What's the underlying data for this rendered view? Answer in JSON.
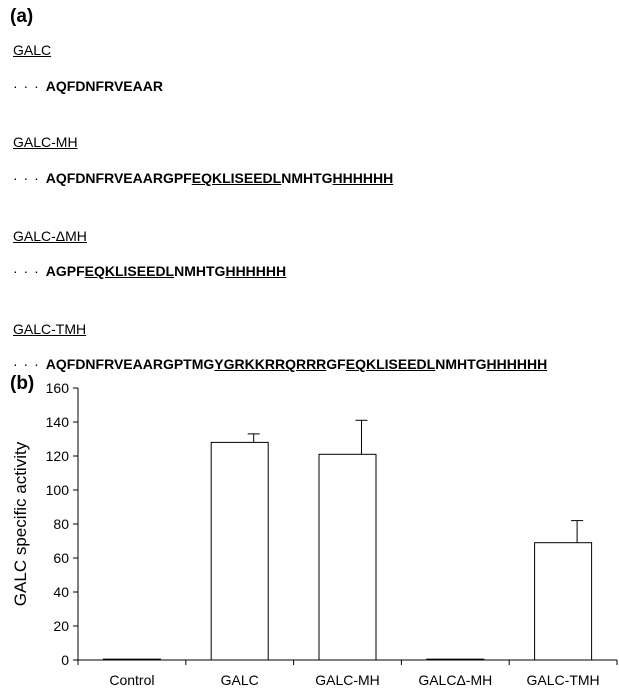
{
  "panel_a": {
    "label": "(a)",
    "constructs": [
      {
        "name": "GALC",
        "prefix": "· · ·",
        "segments": [
          {
            "text": "AQFDNFRVEAAR",
            "u": false
          }
        ]
      },
      {
        "name": "GALC-MH",
        "prefix": "· · ·",
        "segments": [
          {
            "text": "AQFDNFRVEAARGPF",
            "u": false
          },
          {
            "text": "EQKLISEEDL",
            "u": true
          },
          {
            "text": "NMHTG",
            "u": false
          },
          {
            "text": "HHHHHH",
            "u": true
          }
        ]
      },
      {
        "name": "GALC-ΔMH",
        "prefix": "· · ·",
        "segments": [
          {
            "text": "AGPF",
            "u": false
          },
          {
            "text": "EQKLISEEDL",
            "u": true
          },
          {
            "text": "NMHTG",
            "u": false
          },
          {
            "text": "HHHHHH",
            "u": true
          }
        ]
      },
      {
        "name": "GALC-TMH",
        "prefix": "· · ·",
        "segments": [
          {
            "text": "AQFDNFRVEAARGPTMG",
            "u": false
          },
          {
            "text": "YGRKKRRQRRR",
            "u": true
          },
          {
            "text": "GF",
            "u": false
          },
          {
            "text": "EQKLISEEDL",
            "u": true
          },
          {
            "text": "NMHTG",
            "u": false
          },
          {
            "text": "HHHHHH",
            "u": true
          }
        ]
      }
    ]
  },
  "panel_b": {
    "label": "(b)"
  },
  "chart_data": {
    "type": "bar",
    "categories": [
      "Control",
      "GALC",
      "GALC-MH",
      "GALCΔ-MH",
      "GALC-TMH"
    ],
    "values": [
      0.5,
      128,
      121,
      0.5,
      69
    ],
    "errors": [
      0,
      5,
      20,
      0,
      13
    ],
    "ylabel": "GALC specific activity",
    "xlabel": "",
    "ylim": [
      0,
      160
    ],
    "yticks": [
      0,
      20,
      40,
      60,
      80,
      100,
      120,
      140,
      160
    ],
    "grid": false,
    "bar_fill": "#ffffff",
    "bar_stroke": "#000000"
  }
}
